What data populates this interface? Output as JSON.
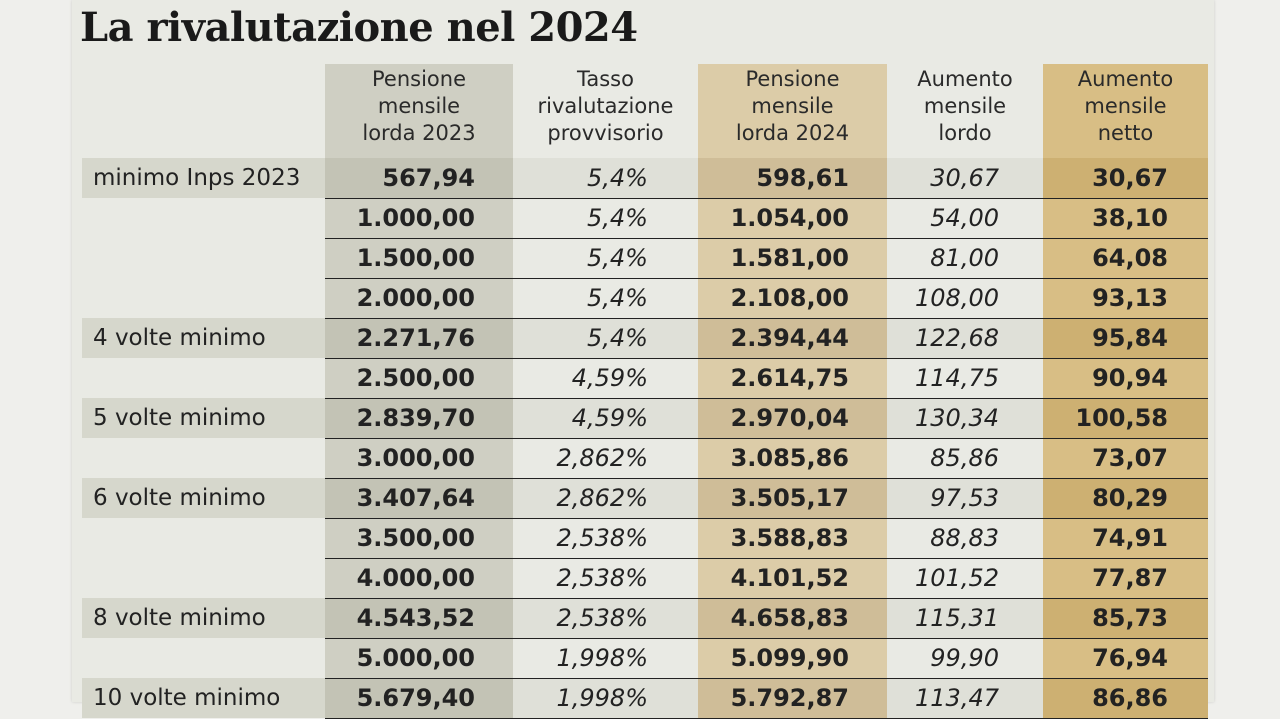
{
  "title": "La rivalutazione nel 2024",
  "headers": [
    "Pensione\nmensile\nlorda 2023",
    "Tasso\nrivalutazione\nprovvisorio",
    "Pensione\nmensile\nlorda 2024",
    "Aumento\nmensile\nlordo",
    "Aumento\nmensile\nnetto"
  ],
  "colors": {
    "col_2023": "#cfcfc3",
    "col_2024": "#dccca8",
    "col_netto": "#d8be85"
  },
  "rows": [
    {
      "label": "minimo Inps 2023",
      "lorda2023": "567,94",
      "tasso": "5,4%",
      "lorda2024": "598,61",
      "aumento_lordo": "30,67",
      "aumento_netto": "30,67"
    },
    {
      "label": "",
      "lorda2023": "1.000,00",
      "tasso": "5,4%",
      "lorda2024": "1.054,00",
      "aumento_lordo": "54,00",
      "aumento_netto": "38,10"
    },
    {
      "label": "",
      "lorda2023": "1.500,00",
      "tasso": "5,4%",
      "lorda2024": "1.581,00",
      "aumento_lordo": "81,00",
      "aumento_netto": "64,08"
    },
    {
      "label": "",
      "lorda2023": "2.000,00",
      "tasso": "5,4%",
      "lorda2024": "2.108,00",
      "aumento_lordo": "108,00",
      "aumento_netto": "93,13"
    },
    {
      "label": "4 volte minimo",
      "lorda2023": "2.271,76",
      "tasso": "5,4%",
      "lorda2024": "2.394,44",
      "aumento_lordo": "122,68",
      "aumento_netto": "95,84"
    },
    {
      "label": "",
      "lorda2023": "2.500,00",
      "tasso": "4,59%",
      "lorda2024": "2.614,75",
      "aumento_lordo": "114,75",
      "aumento_netto": "90,94"
    },
    {
      "label": "5 volte minimo",
      "lorda2023": "2.839,70",
      "tasso": "4,59%",
      "lorda2024": "2.970,04",
      "aumento_lordo": "130,34",
      "aumento_netto": "100,58"
    },
    {
      "label": "",
      "lorda2023": "3.000,00",
      "tasso": "2,862%",
      "lorda2024": "3.085,86",
      "aumento_lordo": "85,86",
      "aumento_netto": "73,07"
    },
    {
      "label": "6 volte minimo",
      "lorda2023": "3.407,64",
      "tasso": "2,862%",
      "lorda2024": "3.505,17",
      "aumento_lordo": "97,53",
      "aumento_netto": "80,29"
    },
    {
      "label": "",
      "lorda2023": "3.500,00",
      "tasso": "2,538%",
      "lorda2024": "3.588,83",
      "aumento_lordo": "88,83",
      "aumento_netto": "74,91"
    },
    {
      "label": "",
      "lorda2023": "4.000,00",
      "tasso": "2,538%",
      "lorda2024": "4.101,52",
      "aumento_lordo": "101,52",
      "aumento_netto": "77,87"
    },
    {
      "label": "8 volte minimo",
      "lorda2023": "4.543,52",
      "tasso": "2,538%",
      "lorda2024": "4.658,83",
      "aumento_lordo": "115,31",
      "aumento_netto": "85,73"
    },
    {
      "label": "",
      "lorda2023": "5.000,00",
      "tasso": "1,998%",
      "lorda2024": "5.099,90",
      "aumento_lordo": "99,90",
      "aumento_netto": "76,94"
    },
    {
      "label": "10 volte minimo",
      "lorda2023": "5.679,40",
      "tasso": "1,998%",
      "lorda2024": "5.792,87",
      "aumento_lordo": "113,47",
      "aumento_netto": "86,86"
    }
  ]
}
